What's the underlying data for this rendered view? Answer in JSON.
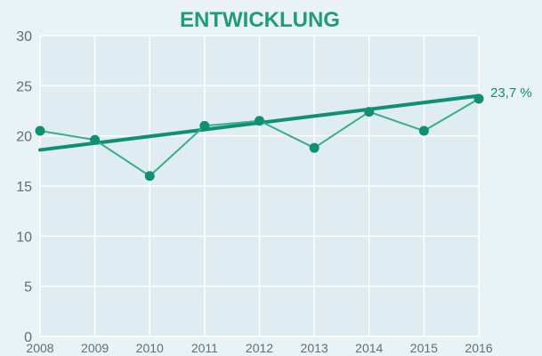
{
  "chart_data": {
    "type": "line",
    "title": "ENTWICKLUNG",
    "xlabel": "",
    "ylabel": "",
    "x": [
      2008,
      2009,
      2010,
      2011,
      2012,
      2013,
      2014,
      2015,
      2016
    ],
    "x_tick_labels": [
      "2008",
      "2009",
      "2010",
      "2011",
      "2012",
      "2013",
      "2014",
      "2015",
      "2016"
    ],
    "y_tick_labels": [
      "0",
      "5",
      "10",
      "15",
      "20",
      "25",
      "30"
    ],
    "y_ticks": [
      0,
      5,
      10,
      15,
      20,
      25,
      30
    ],
    "ylim": [
      0,
      30
    ],
    "xlim": [
      2008,
      2016
    ],
    "grid": true,
    "series": [
      {
        "values": [
          20.5,
          19.6,
          16.0,
          21.0,
          21.5,
          18.8,
          22.4,
          20.5,
          23.7
        ],
        "color": "#3aae8a",
        "style": "line-with-markers"
      }
    ],
    "trend": {
      "start": 18.6,
      "end": 24.0,
      "color": "#0f8f73"
    },
    "annotation": {
      "text": "23,7 %",
      "x": 2016,
      "y": 23.7
    },
    "colors": {
      "background": "#e9f2f5",
      "plot_background": "#dfecf1",
      "grid": "#ffffff",
      "text": "#5f6f77",
      "title": "#1f9b7d"
    }
  }
}
